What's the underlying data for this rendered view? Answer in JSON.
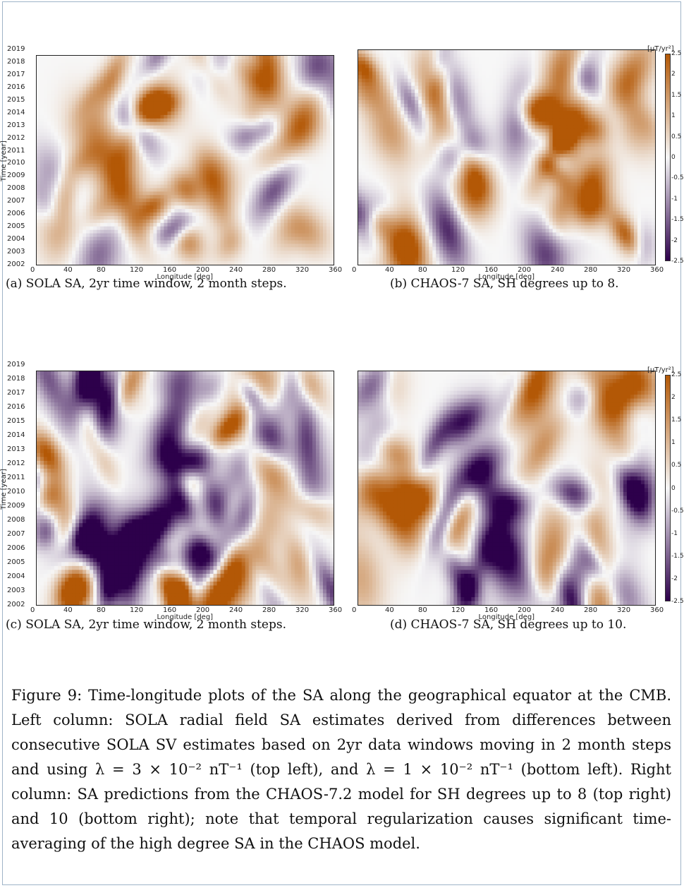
{
  "panels": [
    {
      "id": "a",
      "caption": "(a) SOLA SA, 2yr time window, 2 month steps.",
      "ylabel": "Time [year]",
      "xlabel": "Longitude [deg]",
      "show_y": true,
      "show_cbar": false
    },
    {
      "id": "b",
      "caption": "(b) CHAOS-7 SA, SH degrees up to 8.",
      "ylabel": "",
      "xlabel": "Longitude [deg]",
      "show_y": false,
      "show_cbar": true
    },
    {
      "id": "c",
      "caption": "(c) SOLA SA, 2yr time window, 2 month steps.",
      "ylabel": "Time [year]",
      "xlabel": "Longitude [deg]",
      "show_y": true,
      "show_cbar": false
    },
    {
      "id": "d",
      "caption": "(d) CHAOS-7 SA, SH degrees up to 10.",
      "ylabel": "",
      "xlabel": "Longitude [deg]",
      "show_y": false,
      "show_cbar": true
    }
  ],
  "x_ticks": [
    "0",
    "40",
    "80",
    "120",
    "160",
    "200",
    "240",
    "280",
    "320",
    "360"
  ],
  "y_ticks": [
    "2002",
    "2003",
    "2004",
    "2005",
    "2006",
    "2007",
    "2008",
    "2009",
    "2010",
    "2011",
    "2012",
    "2013",
    "2014",
    "2015",
    "2016",
    "2017",
    "2018",
    "2019"
  ],
  "colorbar": {
    "unit": "[μT/yr²]",
    "ticks": [
      "2.5",
      "2",
      "1.5",
      "1",
      "0.5",
      "0",
      "-0.5",
      "-1",
      "-1.5",
      "-2",
      "-2.5"
    ],
    "colors": {
      "positive": "#b35806",
      "zero": "#f7f7f7",
      "negative": "#2d004b"
    }
  },
  "caption_text": "Figure 9: Time-longitude plots of the SA along the geographical equator at the CMB. Left column: SOLA radial field SA estimates derived from differences between consecutive SOLA SV estimates based on 2yr data windows moving in 2 month steps and using λ = 3 × 10⁻² nT⁻¹ (top left), and λ = 1 × 10⁻² nT⁻¹ (bottom left). Right column: SA predictions from the CHAOS-7.2 model for SH degrees up to 8 (top right) and 10 (bottom right); note that temporal regularization causes significant time-averaging of the high degree SA in the CHAOS model."
}
